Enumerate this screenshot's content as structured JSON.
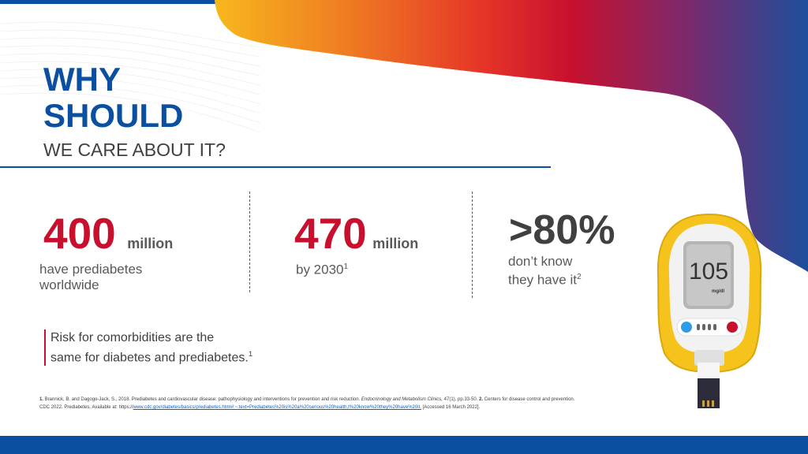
{
  "colors": {
    "brand_blue": "#0a4fa0",
    "accent_red": "#c8102e",
    "gradient": [
      "#f8b71d",
      "#ef7d22",
      "#e63528",
      "#c8102e",
      "#7a2a6e",
      "#1c4f9c"
    ],
    "meter_yellow": "#f6c31d"
  },
  "title": {
    "line1": "WHY",
    "line2": "SHOULD",
    "line3": "WE CARE ABOUT IT?"
  },
  "stats": [
    {
      "value": "400",
      "unit": "million",
      "desc_line1": "have prediabetes",
      "desc_line2": "worldwide"
    },
    {
      "value": "470",
      "unit": "million",
      "desc": "by 2030",
      "sup": "1"
    },
    {
      "value": ">80%",
      "desc_line1": "don’t know",
      "desc_line2": "they have it",
      "sup": "2"
    }
  ],
  "risk": {
    "line1": "Risk for comorbidities are the",
    "line2": "same for diabetes and prediabetes.",
    "sup": "1"
  },
  "references": {
    "r1_num": "1.",
    "r1_text": " Brannick, B. and Dagogo-Jack, S., 2018. Prediabetes and cardiovascular disease: pathophysiology and interventions for prevention and risk reduction. ",
    "r1_journal": "Endocrinology and Metabolism Clinics,",
    "r1_tail": " 47(1), pp.33-50. ",
    "r2_num": "2.",
    "r2_text": " Centers for disease control and prevention.",
    "r2_line2": "CDC 2022. Prediabetes. Available at: https://",
    "r2_link": "www.cdc.gov/diabetes/basics/prediabetes.html#:~:text=Prediabetes%20is%20a%20serious%20health,t%20know%20they%20have%20it.",
    "r2_accessed": " [Accessed 16 March 2022]."
  },
  "meter": {
    "icon": "glucose-meter-icon",
    "reading": "105",
    "unit": "mg/dl"
  }
}
